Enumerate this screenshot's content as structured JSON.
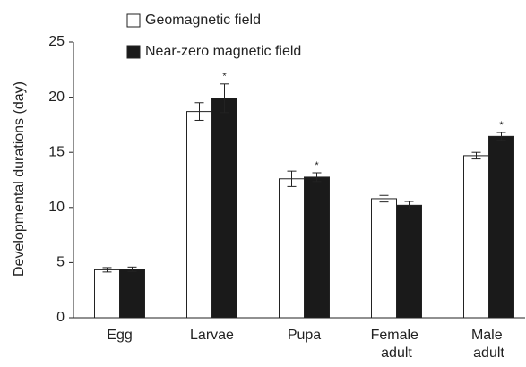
{
  "chart_data": {
    "type": "bar",
    "y_label": "Developmental durations (day)",
    "categories": [
      "Egg",
      "Larvae",
      "Pupa",
      "Female adult",
      "Male adult"
    ],
    "series": [
      {
        "name": "Geomagnetic field",
        "color": "#ffffff",
        "values": [
          4.35,
          18.7,
          12.6,
          10.8,
          14.7
        ],
        "errors": [
          0.2,
          0.8,
          0.7,
          0.3,
          0.3
        ]
      },
      {
        "name": "Near-zero magnetic field",
        "color": "#1a1a1a",
        "values": [
          4.4,
          19.9,
          12.75,
          10.2,
          16.45
        ],
        "errors": [
          0.2,
          1.3,
          0.4,
          0.35,
          0.35
        ],
        "annotations": [
          null,
          "*",
          "*",
          null,
          "*"
        ]
      }
    ],
    "ylim": [
      0,
      25
    ],
    "yticks": [
      0,
      5,
      10,
      15,
      20,
      25
    ]
  }
}
